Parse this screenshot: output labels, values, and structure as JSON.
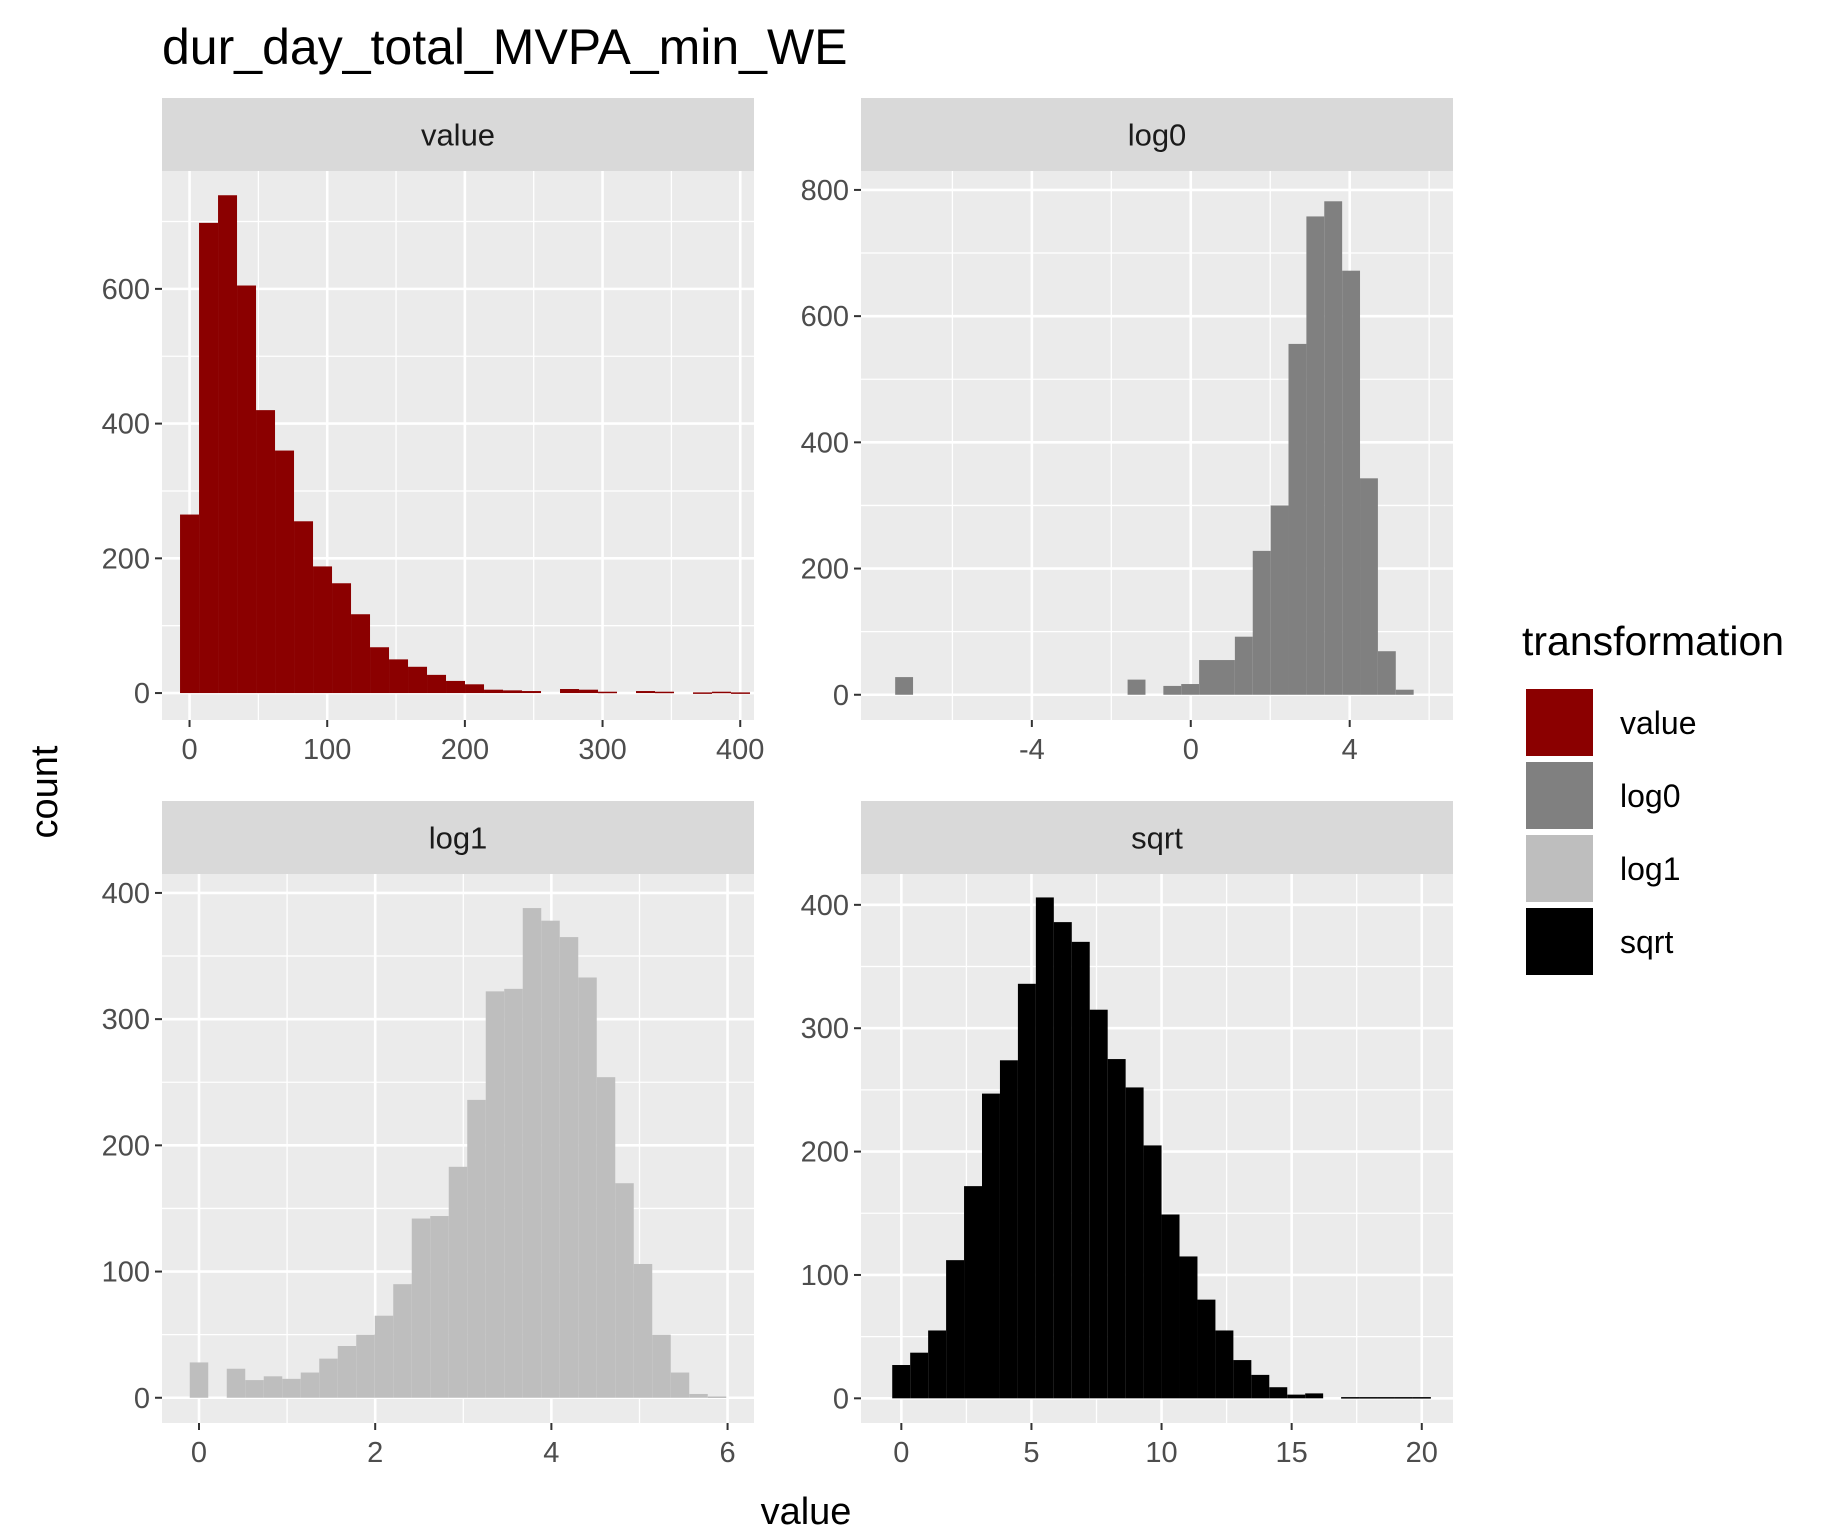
{
  "chart_data": {
    "type": "bar",
    "title": "dur_day_total_MVPA_min_WE",
    "xlabel": "value",
    "ylabel": "count",
    "grid": true,
    "legend": {
      "title": "transformation",
      "placement": "right",
      "entries": [
        {
          "label": "value",
          "color": "#8B0000"
        },
        {
          "label": "log0",
          "color": "#808080"
        },
        {
          "label": "log1",
          "color": "#BEBEBE"
        },
        {
          "label": "sqrt",
          "color": "#000000"
        }
      ]
    },
    "panels": [
      {
        "name": "value",
        "strip": "value",
        "fill": "#8B0000",
        "xlim": [
          -20,
          410
        ],
        "ylim": [
          -40,
          775
        ],
        "xticks": [
          0,
          100,
          200,
          300,
          400
        ],
        "xticklabels": [
          "0",
          "100",
          "200",
          "300",
          "400"
        ],
        "yticks": [
          0,
          200,
          400,
          600
        ],
        "yticklabels": [
          "0",
          "200",
          "400",
          "600"
        ],
        "show_xticklabels": true,
        "bin_start": -6.9,
        "bin_width": 13.8,
        "counts": [
          265,
          698,
          739,
          605,
          420,
          360,
          255,
          188,
          163,
          117,
          68,
          50,
          39,
          27,
          18,
          13,
          5,
          4,
          3,
          0,
          6,
          5,
          2,
          0,
          3,
          2,
          0,
          1,
          2,
          1
        ]
      },
      {
        "name": "log0",
        "strip": "log0",
        "fill": "#808080",
        "xlim": [
          -8.3,
          6.6
        ],
        "ylim": [
          -40,
          830
        ],
        "xticks": [
          -4,
          0,
          4
        ],
        "xticklabels": [
          "-4",
          "0",
          "4"
        ],
        "yticks": [
          0,
          200,
          400,
          600,
          800
        ],
        "yticklabels": [
          "0",
          "200",
          "400",
          "600",
          "800"
        ],
        "show_xticklabels": true,
        "bin_start": -7.44,
        "bin_width": 0.45,
        "counts": [
          28,
          0,
          0,
          0,
          0,
          0,
          0,
          0,
          0,
          0,
          0,
          0,
          0,
          24,
          0,
          14,
          17,
          55,
          55,
          92,
          228,
          300,
          556,
          758,
          782,
          672,
          343,
          69,
          8
        ]
      },
      {
        "name": "log1",
        "strip": "log1",
        "fill": "#BEBEBE",
        "xlim": [
          -0.42,
          6.3
        ],
        "ylim": [
          -20,
          415
        ],
        "xticks": [
          0,
          2,
          4,
          6
        ],
        "xticklabels": [
          "0",
          "2",
          "4",
          "6"
        ],
        "yticks": [
          0,
          100,
          200,
          300,
          400
        ],
        "yticklabels": [
          "0",
          "100",
          "200",
          "300",
          "400"
        ],
        "show_xticklabels": true,
        "bin_start": -0.105,
        "bin_width": 0.21,
        "counts": [
          28,
          0,
          23,
          14,
          17,
          15,
          20,
          31,
          41,
          50,
          65,
          90,
          142,
          144,
          183,
          236,
          322,
          324,
          388,
          378,
          365,
          333,
          254,
          170,
          106,
          50,
          20,
          3,
          1
        ]
      },
      {
        "name": "sqrt",
        "strip": "sqrt",
        "fill": "#000000",
        "xlim": [
          -1.55,
          21.2
        ],
        "ylim": [
          -20,
          425
        ],
        "xticks": [
          0,
          5,
          10,
          15,
          20
        ],
        "xticklabels": [
          "0",
          "5",
          "10",
          "15",
          "20"
        ],
        "yticks": [
          0,
          100,
          200,
          300,
          400
        ],
        "yticklabels": [
          "0",
          "100",
          "200",
          "300",
          "400"
        ],
        "show_xticklabels": true,
        "bin_start": -0.35,
        "bin_width": 0.69,
        "counts": [
          27,
          37,
          55,
          112,
          172,
          247,
          274,
          336,
          406,
          386,
          370,
          315,
          275,
          252,
          205,
          149,
          115,
          80,
          55,
          31,
          19,
          9,
          3,
          4,
          0,
          1,
          1,
          1,
          1,
          1
        ]
      }
    ]
  }
}
